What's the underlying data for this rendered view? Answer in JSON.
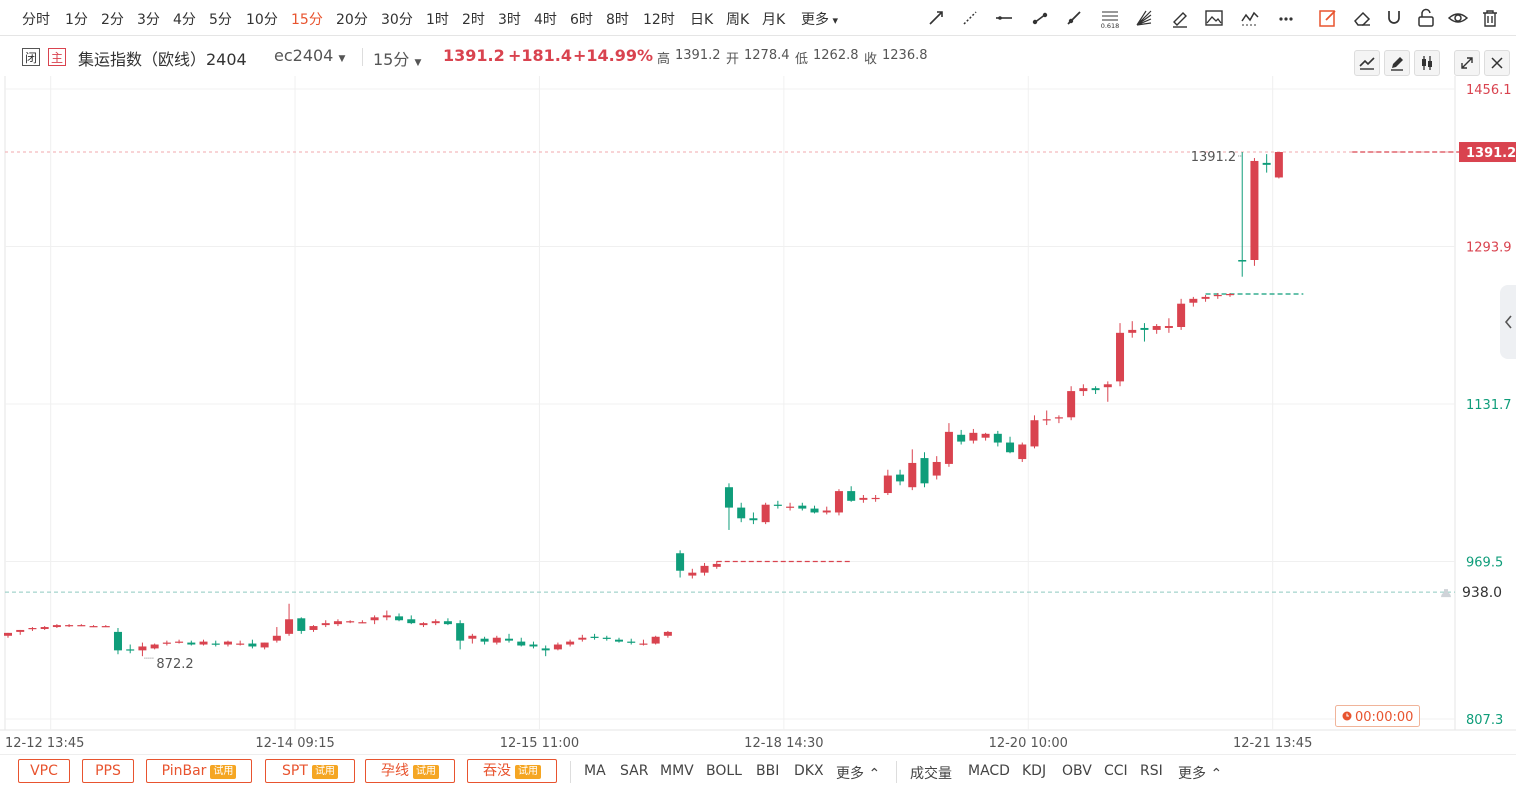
{
  "periods": [
    "分时",
    "1分",
    "2分",
    "3分",
    "4分",
    "5分",
    "10分",
    "15分",
    "20分",
    "30分",
    "1时",
    "2时",
    "3时",
    "4时",
    "6时",
    "8时",
    "12时",
    "日K",
    "周K",
    "月K",
    "更多"
  ],
  "active_period": "15分",
  "toolbar_icons": [
    "trend-line-icon",
    "dashed-line-icon",
    "horizontal-line-icon",
    "segment-icon",
    "ray-icon",
    "fibonacci-icon",
    "fan-icon",
    "brush-icon",
    "image-icon",
    "wave-icon",
    "more-dots-icon",
    "edit-icon",
    "eraser-icon",
    "magnet-icon",
    "lock-icon",
    "eye-icon",
    "trash-icon"
  ],
  "fib_label": "0.618",
  "info": {
    "tag1": "闭",
    "tag2": "主",
    "name": "集运指数（欧线）2404",
    "code": "ec2404",
    "period": "15分",
    "price": "1391.2",
    "change": "+181.4",
    "pct": "+14.99%",
    "high_label": "高",
    "high": "1391.2",
    "open_label": "开",
    "open": "1278.4",
    "low_label": "低",
    "low": "1262.8",
    "close_label": "收",
    "close": "1236.8"
  },
  "bottom": {
    "pills": [
      {
        "label": "VPC",
        "trial": ""
      },
      {
        "label": "PPS",
        "trial": ""
      },
      {
        "label": "PinBar",
        "trial": "试用"
      },
      {
        "label": "SPT",
        "trial": "试用"
      },
      {
        "label": "孕线",
        "trial": "试用"
      },
      {
        "label": "吞没",
        "trial": "试用"
      }
    ],
    "main_indicators": [
      "MA",
      "SAR",
      "MMV",
      "BOLL",
      "BBI",
      "DKX",
      "更多"
    ],
    "sub_indicators": [
      "成交量",
      "MACD",
      "KDJ",
      "OBV",
      "CCI",
      "RSI",
      "更多"
    ]
  },
  "chart_data": {
    "type": "candlestick",
    "ylim": [
      807.3,
      1456.1
    ],
    "y_ticks": [
      {
        "value": 1456.1,
        "color": "#d9434f"
      },
      {
        "value": 1293.9,
        "color": "#d9434f"
      },
      {
        "value": 1131.7,
        "color": "#0f9d7a"
      },
      {
        "value": 969.5,
        "color": "#0f9d7a"
      },
      {
        "value": 807.3,
        "color": "#0f9d7a"
      }
    ],
    "x_ticks": [
      {
        "label": "12-12 13:45",
        "index": 3
      },
      {
        "label": "12-14 09:15",
        "index": 23
      },
      {
        "label": "12-15 11:00",
        "index": 43
      },
      {
        "label": "12-18 14:30",
        "index": 63
      },
      {
        "label": "12-20 10:00",
        "index": 83
      },
      {
        "label": "12-21 13:45",
        "index": 103
      }
    ],
    "current_price": 1391.2,
    "reference_price": 938.0,
    "max_label": "1391.2",
    "min_label": "872.2",
    "timer": "00:00:00",
    "up_color": "#d9434f",
    "down_color": "#0f9d7a",
    "candles": [
      [
        893,
        896,
        891,
        896
      ],
      [
        897,
        899,
        894,
        899
      ],
      [
        900,
        902,
        898,
        901
      ],
      [
        900,
        903,
        899,
        902
      ],
      [
        902,
        905,
        901,
        904
      ],
      [
        903,
        905,
        902,
        904
      ],
      [
        904,
        905,
        903,
        904
      ],
      [
        903,
        904,
        902,
        903
      ],
      [
        903,
        904,
        902,
        903
      ],
      [
        897,
        901,
        874,
        878
      ],
      [
        879,
        884,
        875,
        878
      ],
      [
        878,
        886,
        872,
        882
      ],
      [
        880,
        885,
        879,
        884
      ],
      [
        885,
        888,
        883,
        886
      ],
      [
        887,
        889,
        885,
        887
      ],
      [
        886,
        888,
        883,
        884
      ],
      [
        884,
        889,
        883,
        887
      ],
      [
        885,
        888,
        882,
        884
      ],
      [
        884,
        888,
        882,
        887
      ],
      [
        885,
        888,
        883,
        885
      ],
      [
        885,
        889,
        880,
        882
      ],
      [
        881,
        886,
        879,
        886
      ],
      [
        888,
        902,
        886,
        893
      ],
      [
        895,
        926,
        893,
        910
      ],
      [
        911,
        912,
        895,
        898
      ],
      [
        899,
        904,
        897,
        903
      ],
      [
        904,
        909,
        902,
        906
      ],
      [
        905,
        910,
        903,
        908
      ],
      [
        907,
        909,
        906,
        908
      ],
      [
        907,
        909,
        906,
        907
      ],
      [
        909,
        914,
        905,
        912
      ],
      [
        912,
        919,
        909,
        914
      ],
      [
        913,
        916,
        908,
        909
      ],
      [
        910,
        914,
        905,
        906
      ],
      [
        904,
        907,
        902,
        906
      ],
      [
        906,
        910,
        904,
        908
      ],
      [
        908,
        911,
        904,
        905
      ],
      [
        906,
        909,
        879,
        888
      ],
      [
        890,
        895,
        885,
        893
      ],
      [
        890,
        892,
        884,
        887
      ],
      [
        886,
        893,
        884,
        891
      ],
      [
        890,
        895,
        886,
        888
      ],
      [
        887,
        891,
        882,
        883
      ],
      [
        884,
        887,
        880,
        882
      ],
      [
        880,
        883,
        872,
        878
      ],
      [
        879,
        886,
        878,
        884
      ],
      [
        884,
        889,
        882,
        887
      ],
      [
        889,
        894,
        887,
        891
      ],
      [
        892,
        895,
        889,
        891
      ],
      [
        891,
        893,
        888,
        890
      ],
      [
        889,
        891,
        886,
        887
      ],
      [
        887,
        890,
        884,
        886
      ],
      [
        885,
        889,
        883,
        885
      ],
      [
        885,
        893,
        884,
        892
      ],
      [
        893,
        898,
        891,
        897
      ],
      [
        978,
        981,
        953,
        960
      ],
      [
        955,
        962,
        952,
        958
      ],
      [
        958,
        968,
        955,
        965
      ],
      [
        964,
        970,
        962,
        967
      ],
      [
        1046,
        1050,
        1002,
        1025
      ],
      [
        1025,
        1030,
        1010,
        1014
      ],
      [
        1014,
        1020,
        1008,
        1012
      ],
      [
        1010,
        1030,
        1008,
        1028
      ],
      [
        1028,
        1032,
        1024,
        1027
      ],
      [
        1025,
        1030,
        1022,
        1026
      ],
      [
        1027,
        1030,
        1022,
        1024
      ],
      [
        1024,
        1027,
        1019,
        1020
      ],
      [
        1020,
        1026,
        1018,
        1022
      ],
      [
        1020,
        1044,
        1017,
        1042
      ],
      [
        1042,
        1047,
        1031,
        1032
      ],
      [
        1033,
        1038,
        1030,
        1035
      ],
      [
        1034,
        1038,
        1031,
        1035
      ],
      [
        1040,
        1064,
        1038,
        1058
      ],
      [
        1059,
        1064,
        1048,
        1052
      ],
      [
        1046,
        1085,
        1043,
        1071
      ],
      [
        1076,
        1082,
        1046,
        1050
      ],
      [
        1058,
        1078,
        1054,
        1072
      ],
      [
        1070,
        1112,
        1067,
        1103
      ],
      [
        1100,
        1105,
        1090,
        1093
      ],
      [
        1094,
        1106,
        1091,
        1102
      ],
      [
        1097,
        1102,
        1094,
        1101
      ],
      [
        1101,
        1104,
        1088,
        1092
      ],
      [
        1092,
        1098,
        1081,
        1082
      ],
      [
        1075,
        1092,
        1072,
        1090
      ],
      [
        1088,
        1120,
        1086,
        1115
      ],
      [
        1115,
        1125,
        1110,
        1116
      ],
      [
        1117,
        1120,
        1112,
        1118
      ],
      [
        1118,
        1150,
        1115,
        1145
      ],
      [
        1145,
        1152,
        1140,
        1148
      ],
      [
        1148,
        1150,
        1142,
        1146
      ],
      [
        1149,
        1155,
        1134,
        1152
      ],
      [
        1155,
        1215,
        1150,
        1205
      ],
      [
        1205,
        1217,
        1200,
        1208
      ],
      [
        1210,
        1215,
        1196,
        1208
      ],
      [
        1208,
        1214,
        1204,
        1212
      ],
      [
        1210,
        1220,
        1205,
        1212
      ],
      [
        1211,
        1240,
        1208,
        1235
      ],
      [
        1236,
        1242,
        1232,
        1240
      ],
      [
        1240,
        1244,
        1237,
        1242
      ],
      [
        1243,
        1246,
        1240,
        1244
      ],
      [
        1244,
        1246,
        1242,
        1245
      ],
      [
        1280,
        1391.2,
        1262.8,
        1278.4
      ],
      [
        1280,
        1385,
        1274,
        1382
      ],
      [
        1380,
        1389,
        1370,
        1378
      ],
      [
        1365,
        1391.2,
        1364,
        1391.2
      ]
    ],
    "dashes": [
      {
        "from_index": 58,
        "to_index": 69,
        "value": 969.5,
        "color": "#d9434f"
      },
      {
        "from_index": 98,
        "to_index": 106,
        "value": 1245,
        "color": "#0f9d7a"
      },
      {
        "from_index": 110,
        "to_index": 119,
        "value": 1391.2,
        "color": "#d9434f"
      }
    ]
  }
}
